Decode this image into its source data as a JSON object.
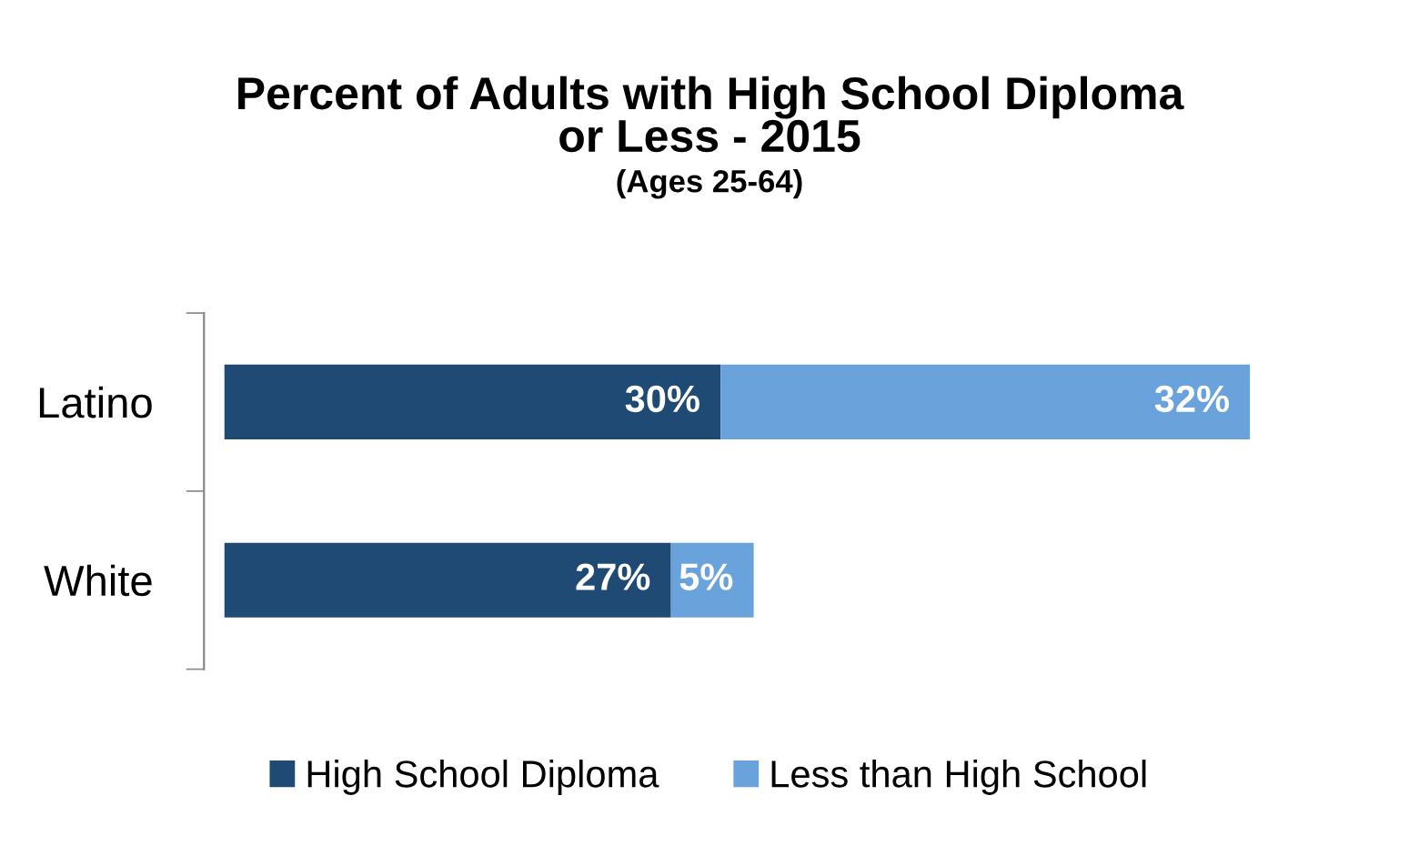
{
  "chart_data": {
    "type": "bar",
    "orientation": "horizontal",
    "stacked": true,
    "title": "Percent of Adults with High School Diploma\nor Less - 2015",
    "subtitle": "(Ages 25-64)",
    "categories": [
      "Latino",
      "White"
    ],
    "series": [
      {
        "name": "High School Diploma",
        "color": "#1f4a73",
        "values": [
          30,
          27
        ],
        "value_labels": [
          "30%",
          "27%"
        ]
      },
      {
        "name": "Less than High School",
        "color": "#6aa2dc",
        "values": [
          32,
          5
        ],
        "value_labels": [
          "32%",
          "5%"
        ]
      }
    ],
    "legend": "bottom",
    "grid": false
  }
}
